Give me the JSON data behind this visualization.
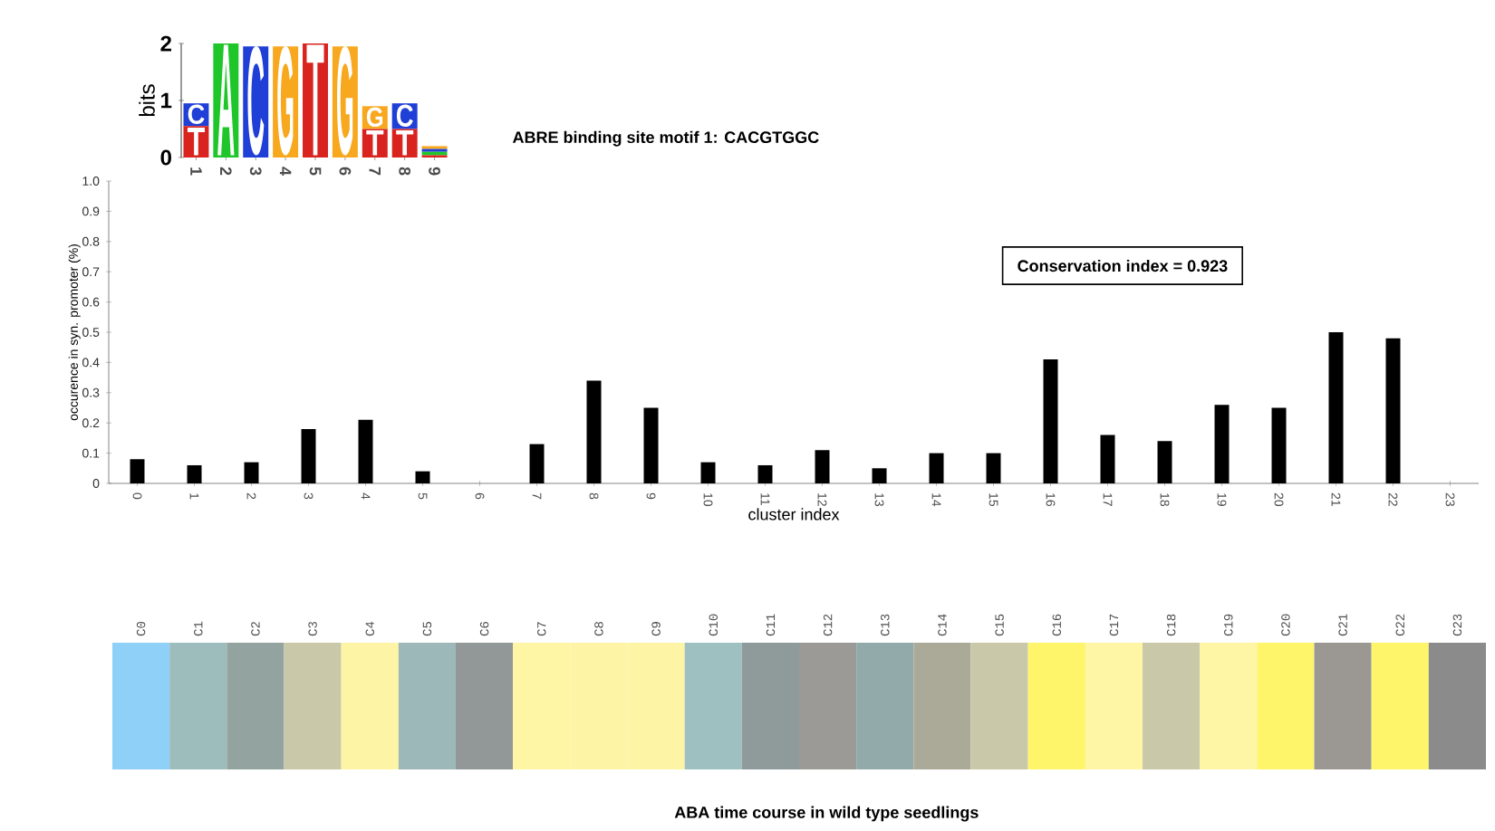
{
  "chart_data": [
    {
      "type": "bar",
      "stacked": true,
      "ylabel": "bits",
      "ylim": [
        0,
        2
      ],
      "yticks": [
        0,
        1,
        2
      ],
      "categories": [
        "1",
        "2",
        "3",
        "4",
        "5",
        "6",
        "7",
        "8",
        "9"
      ],
      "series": [
        {
          "name": "T",
          "color": "#d9231f",
          "values": [
            0.55,
            0,
            0,
            0,
            2.0,
            0,
            0.5,
            0.5,
            0.04
          ]
        },
        {
          "name": "A",
          "color": "#1fc62a",
          "values": [
            0,
            2.0,
            0,
            0,
            0,
            0,
            0,
            0,
            0.06
          ]
        },
        {
          "name": "C",
          "color": "#1f3fd6",
          "values": [
            0.4,
            0,
            1.95,
            0,
            0,
            0,
            0,
            0.45,
            0.05
          ]
        },
        {
          "name": "G",
          "color": "#f7a81f",
          "values": [
            0,
            0,
            0,
            1.95,
            0,
            1.95,
            0.4,
            0,
            0.05
          ]
        }
      ]
    },
    {
      "type": "bar",
      "title": "ABRE binding site motif 1:    CACGTGGC",
      "xlabel": "cluster index",
      "ylabel": "occurence in syn. promoter (%)",
      "categories": [
        "0",
        "1",
        "2",
        "3",
        "4",
        "5",
        "6",
        "7",
        "8",
        "9",
        "10",
        "11",
        "12",
        "13",
        "14",
        "15",
        "16",
        "17",
        "18",
        "19",
        "20",
        "21",
        "22",
        "23"
      ],
      "values": [
        0.08,
        0.06,
        0.07,
        0.18,
        0.21,
        0.04,
        0,
        0.13,
        0.34,
        0.25,
        0.07,
        0.06,
        0.11,
        0.05,
        0.1,
        0.1,
        0.41,
        0.16,
        0.14,
        0.26,
        0.25,
        0.5,
        0.48,
        0
      ],
      "color": "#000000",
      "ylim": [
        0,
        1
      ],
      "yticks": [
        0,
        0.1,
        0.2,
        0.3,
        0.4,
        0.5,
        0.6,
        0.7,
        0.8,
        0.9,
        {
          "value": 1,
          "label": "1.0"
        }
      ],
      "annotations": [
        "Conservation index = 0.923"
      ]
    },
    {
      "type": "other",
      "title": "ABA time course in wild type seedlings",
      "categories": [
        "C0",
        "C1",
        "C2",
        "C3",
        "C4",
        "C5",
        "C6",
        "C7",
        "C8",
        "C9",
        "C10",
        "C11",
        "C12",
        "C13",
        "C14",
        "C15",
        "C16",
        "C17",
        "C18",
        "C19",
        "C20",
        "C21",
        "C22",
        "C23"
      ],
      "colors": [
        "#8fd0f8",
        "#9dbcbc",
        "#93a3a0",
        "#c9c8a9",
        "#fdf5a5",
        "#9db8b8",
        "#929898",
        "#fef5a5",
        "#fdf5a5",
        "#fdf5a5",
        "#9fc0c0",
        "#8f9a9a",
        "#9b9a96",
        "#93aaaa",
        "#abaa98",
        "#c9c8a9",
        "#fef56a",
        "#fef5a5",
        "#c9c8a9",
        "#fef5a5",
        "#fef56a",
        "#9b9894",
        "#fef56a",
        "#8b8b8b"
      ]
    }
  ]
}
